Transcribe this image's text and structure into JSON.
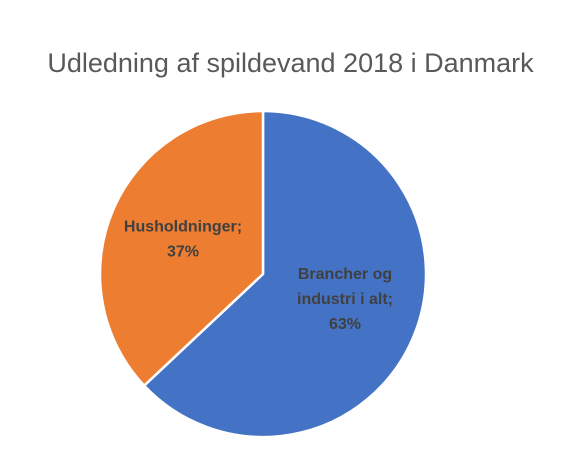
{
  "chart_data": {
    "type": "pie",
    "title": "Udledning af spildevand 2018 i Danmark",
    "categories": [
      "Brancher og industri i alt",
      "Husholdninger"
    ],
    "values": [
      63,
      37
    ],
    "unit": "%",
    "colors": [
      "#4472C4",
      "#ED7D31"
    ],
    "data_labels": [
      [
        "Brancher og",
        "industri i alt;",
        "63%"
      ],
      [
        "Husholdninger;",
        "37%"
      ]
    ],
    "legend": "none"
  }
}
